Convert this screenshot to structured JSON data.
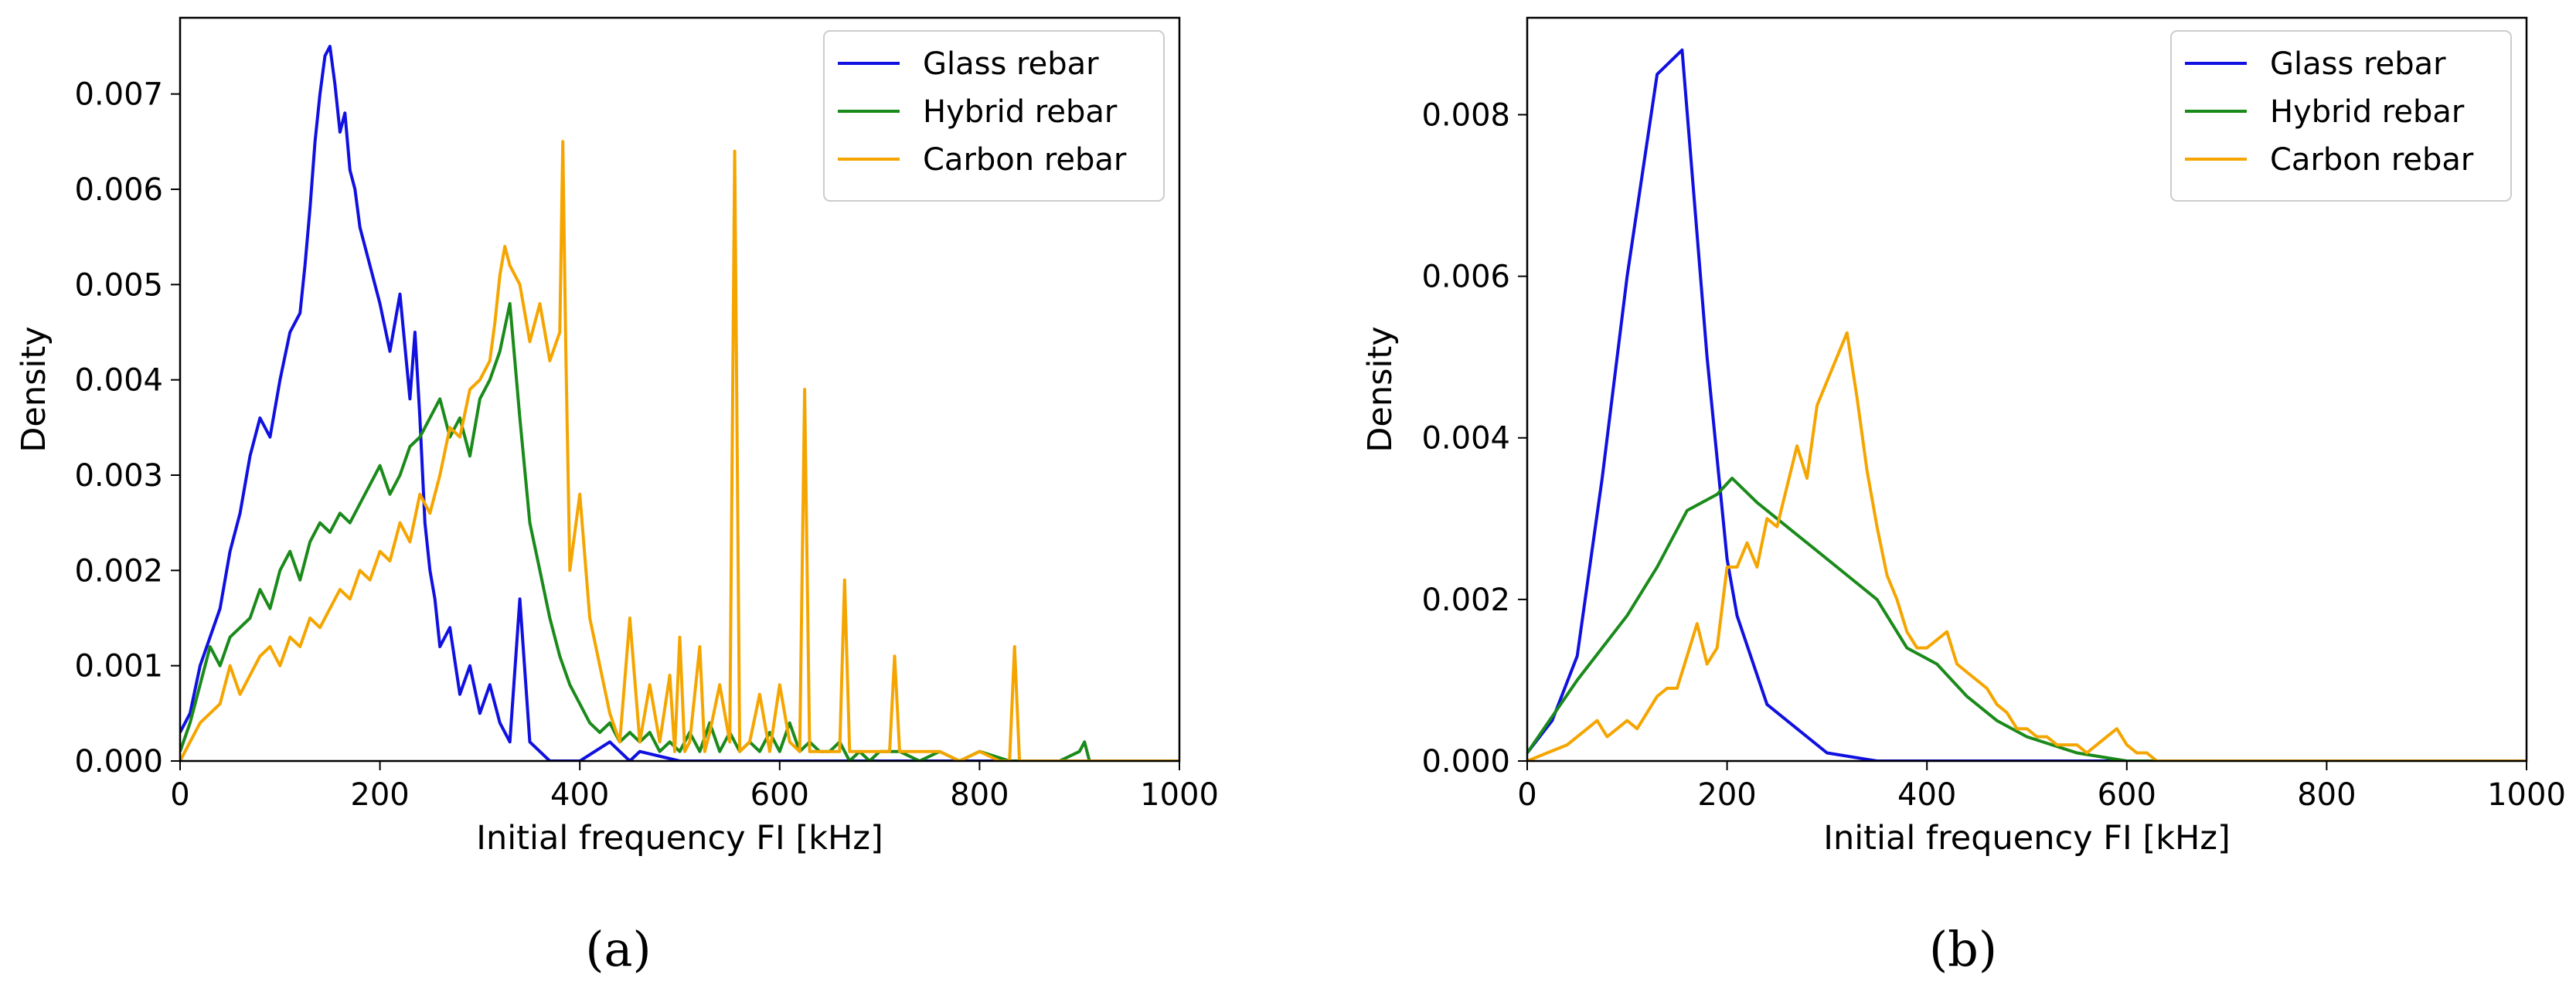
{
  "chart_data": [
    {
      "panel_label": "(a)",
      "type": "line",
      "xlabel": "Initial frequency FI [kHz]",
      "ylabel": "Density",
      "xlim": [
        0,
        1000
      ],
      "ylim": [
        0,
        0.0078
      ],
      "xticks": [
        0,
        200,
        400,
        600,
        800,
        1000
      ],
      "yticks": [
        0.0,
        0.001,
        0.002,
        0.003,
        0.004,
        0.005,
        0.006,
        0.007
      ],
      "legend_position": "top-right",
      "series": [
        {
          "name": "Glass rebar",
          "color": "#1010e0",
          "x": [
            0,
            10,
            20,
            30,
            40,
            50,
            60,
            70,
            80,
            90,
            100,
            110,
            120,
            125,
            130,
            135,
            140,
            145,
            150,
            155,
            160,
            165,
            170,
            175,
            180,
            190,
            200,
            210,
            220,
            230,
            235,
            240,
            245,
            250,
            255,
            260,
            270,
            280,
            290,
            300,
            310,
            320,
            330,
            340,
            350,
            370,
            400,
            430,
            450,
            460,
            500,
            1000
          ],
          "y": [
            0.0003,
            0.0005,
            0.001,
            0.0013,
            0.0016,
            0.0022,
            0.0026,
            0.0032,
            0.0036,
            0.0034,
            0.004,
            0.0045,
            0.0047,
            0.0052,
            0.0058,
            0.0065,
            0.007,
            0.0074,
            0.0075,
            0.0071,
            0.0066,
            0.0068,
            0.0062,
            0.006,
            0.0056,
            0.0052,
            0.0048,
            0.0043,
            0.0049,
            0.0038,
            0.0045,
            0.0036,
            0.0025,
            0.002,
            0.0017,
            0.0012,
            0.0014,
            0.0007,
            0.001,
            0.0005,
            0.0008,
            0.0004,
            0.0002,
            0.0017,
            0.0002,
            0.0,
            0.0,
            0.0002,
            0.0,
            0.0001,
            0.0,
            0.0
          ]
        },
        {
          "name": "Hybrid rebar",
          "color": "#1a8a1a",
          "x": [
            0,
            10,
            20,
            30,
            40,
            50,
            60,
            70,
            80,
            90,
            100,
            110,
            120,
            130,
            140,
            150,
            160,
            170,
            180,
            190,
            200,
            210,
            220,
            230,
            240,
            250,
            260,
            270,
            280,
            290,
            300,
            310,
            320,
            330,
            340,
            350,
            360,
            370,
            380,
            390,
            400,
            410,
            420,
            430,
            440,
            450,
            460,
            470,
            480,
            490,
            500,
            510,
            520,
            530,
            540,
            550,
            560,
            570,
            580,
            590,
            600,
            610,
            620,
            630,
            640,
            650,
            660,
            670,
            680,
            690,
            700,
            720,
            740,
            760,
            780,
            800,
            830,
            850,
            880,
            900,
            905,
            910,
            930,
            1000
          ],
          "y": [
            0.0001,
            0.0004,
            0.0008,
            0.0012,
            0.001,
            0.0013,
            0.0014,
            0.0015,
            0.0018,
            0.0016,
            0.002,
            0.0022,
            0.0019,
            0.0023,
            0.0025,
            0.0024,
            0.0026,
            0.0025,
            0.0027,
            0.0029,
            0.0031,
            0.0028,
            0.003,
            0.0033,
            0.0034,
            0.0036,
            0.0038,
            0.0034,
            0.0036,
            0.0032,
            0.0038,
            0.004,
            0.0043,
            0.0048,
            0.0036,
            0.0025,
            0.002,
            0.0015,
            0.0011,
            0.0008,
            0.0006,
            0.0004,
            0.0003,
            0.0004,
            0.0002,
            0.0003,
            0.0002,
            0.0003,
            0.0001,
            0.0002,
            0.0001,
            0.0003,
            0.0001,
            0.0004,
            0.0001,
            0.0003,
            0.0001,
            0.0002,
            0.0001,
            0.0003,
            0.0001,
            0.0004,
            0.0001,
            0.0002,
            0.0001,
            0.0001,
            0.0002,
            0.0,
            0.0001,
            0.0,
            0.0001,
            0.0001,
            0.0,
            0.0001,
            0.0,
            0.0001,
            0.0,
            0.0,
            0.0,
            0.0001,
            0.0002,
            0.0,
            0.0,
            0.0
          ]
        },
        {
          "name": "Carbon rebar",
          "color": "#f5a500",
          "x": [
            0,
            10,
            20,
            30,
            40,
            50,
            60,
            70,
            80,
            90,
            100,
            110,
            120,
            130,
            140,
            150,
            160,
            170,
            180,
            190,
            200,
            210,
            220,
            230,
            240,
            250,
            260,
            270,
            280,
            290,
            300,
            310,
            315,
            320,
            325,
            330,
            340,
            350,
            360,
            370,
            380,
            383,
            386,
            390,
            400,
            410,
            420,
            430,
            440,
            450,
            460,
            470,
            480,
            490,
            495,
            500,
            505,
            510,
            520,
            525,
            530,
            540,
            550,
            555,
            560,
            570,
            580,
            590,
            600,
            610,
            620,
            625,
            630,
            640,
            650,
            660,
            665,
            670,
            680,
            690,
            700,
            710,
            715,
            720,
            740,
            760,
            780,
            800,
            820,
            830,
            835,
            840,
            860,
            900,
            1000
          ],
          "y": [
            0.0,
            0.0002,
            0.0004,
            0.0005,
            0.0006,
            0.001,
            0.0007,
            0.0009,
            0.0011,
            0.0012,
            0.001,
            0.0013,
            0.0012,
            0.0015,
            0.0014,
            0.0016,
            0.0018,
            0.0017,
            0.002,
            0.0019,
            0.0022,
            0.0021,
            0.0025,
            0.0023,
            0.0028,
            0.0026,
            0.003,
            0.0035,
            0.0034,
            0.0039,
            0.004,
            0.0042,
            0.0046,
            0.0051,
            0.0054,
            0.0052,
            0.005,
            0.0044,
            0.0048,
            0.0042,
            0.0045,
            0.0065,
            0.0043,
            0.002,
            0.0028,
            0.0015,
            0.001,
            0.0005,
            0.0002,
            0.0015,
            0.0002,
            0.0008,
            0.0002,
            0.0009,
            0.0001,
            0.0013,
            0.0001,
            0.0002,
            0.0012,
            0.0001,
            0.0003,
            0.0008,
            0.0002,
            0.0064,
            0.0001,
            0.0002,
            0.0007,
            0.0001,
            0.0008,
            0.0002,
            0.0001,
            0.0039,
            0.0001,
            0.0001,
            0.0001,
            0.0001,
            0.0019,
            0.0001,
            0.0001,
            0.0001,
            0.0001,
            0.0001,
            0.0011,
            0.0001,
            0.0001,
            0.0001,
            0.0,
            0.0001,
            0.0,
            0.0,
            0.0012,
            0.0,
            0.0,
            0.0,
            0.0
          ]
        }
      ]
    },
    {
      "panel_label": "(b)",
      "type": "line",
      "xlabel": "Initial frequency FI [kHz]",
      "ylabel": "Density",
      "xlim": [
        0,
        1000
      ],
      "ylim": [
        0,
        0.0092
      ],
      "xticks": [
        0,
        200,
        400,
        600,
        800,
        1000
      ],
      "yticks": [
        0.0,
        0.002,
        0.004,
        0.006,
        0.008
      ],
      "legend_position": "top-right",
      "series": [
        {
          "name": "Glass rebar",
          "color": "#1010e0",
          "x": [
            0,
            25,
            50,
            75,
            100,
            130,
            155,
            180,
            200,
            210,
            240,
            270,
            300,
            350,
            400,
            450,
            500,
            600,
            700,
            800,
            1000
          ],
          "y": [
            0.0001,
            0.0005,
            0.0013,
            0.0035,
            0.006,
            0.0085,
            0.0088,
            0.005,
            0.0025,
            0.0018,
            0.0007,
            0.0004,
            0.0001,
            0.0,
            0.0,
            0.0,
            0.0,
            0.0,
            0.0,
            0.0,
            0.0
          ]
        },
        {
          "name": "Hybrid rebar",
          "color": "#1a8a1a",
          "x": [
            0,
            50,
            100,
            130,
            160,
            190,
            205,
            230,
            260,
            290,
            320,
            350,
            380,
            410,
            440,
            470,
            500,
            550,
            600,
            700,
            800,
            1000
          ],
          "y": [
            0.0001,
            0.001,
            0.0018,
            0.0024,
            0.0031,
            0.0033,
            0.0035,
            0.0032,
            0.0029,
            0.0026,
            0.0023,
            0.002,
            0.0014,
            0.0012,
            0.0008,
            0.0005,
            0.0003,
            0.0001,
            0.0,
            0.0,
            0.0,
            0.0
          ]
        },
        {
          "name": "Carbon rebar",
          "color": "#f5a500",
          "x": [
            0,
            20,
            40,
            60,
            70,
            80,
            90,
            100,
            110,
            120,
            130,
            140,
            150,
            160,
            170,
            180,
            190,
            200,
            210,
            220,
            230,
            240,
            250,
            260,
            270,
            280,
            290,
            300,
            310,
            320,
            330,
            340,
            350,
            360,
            370,
            380,
            390,
            400,
            410,
            420,
            430,
            440,
            450,
            460,
            470,
            480,
            490,
            500,
            510,
            520,
            530,
            540,
            550,
            560,
            570,
            580,
            590,
            600,
            610,
            620,
            630,
            640,
            650,
            680,
            700,
            800,
            1000
          ],
          "y": [
            0.0,
            0.0001,
            0.0002,
            0.0004,
            0.0005,
            0.0003,
            0.0004,
            0.0005,
            0.0004,
            0.0006,
            0.0008,
            0.0009,
            0.0009,
            0.0013,
            0.0017,
            0.0012,
            0.0014,
            0.0024,
            0.0024,
            0.0027,
            0.0024,
            0.003,
            0.0029,
            0.0034,
            0.0039,
            0.0035,
            0.0044,
            0.0047,
            0.005,
            0.0053,
            0.0045,
            0.0036,
            0.0029,
            0.0023,
            0.002,
            0.0016,
            0.0014,
            0.0014,
            0.0015,
            0.0016,
            0.0012,
            0.0011,
            0.001,
            0.0009,
            0.0007,
            0.0006,
            0.0004,
            0.0004,
            0.0003,
            0.0003,
            0.0002,
            0.0002,
            0.0002,
            0.0001,
            0.0002,
            0.0003,
            0.0004,
            0.0002,
            0.0001,
            0.0001,
            0.0,
            0.0,
            0.0,
            0.0,
            0.0,
            0.0,
            0.0
          ]
        }
      ]
    }
  ]
}
